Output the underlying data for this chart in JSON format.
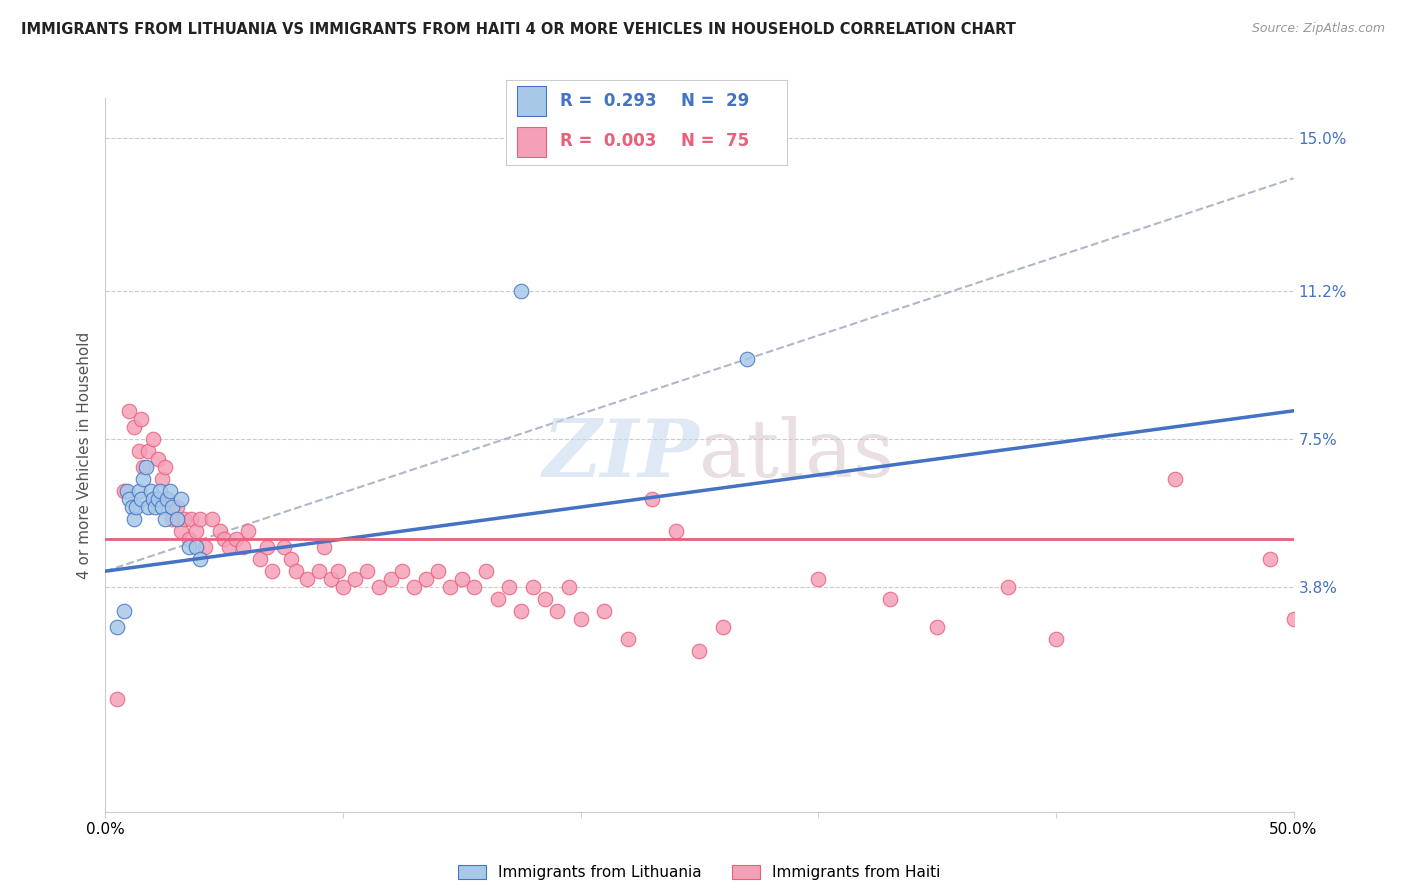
{
  "title": "IMMIGRANTS FROM LITHUANIA VS IMMIGRANTS FROM HAITI 4 OR MORE VEHICLES IN HOUSEHOLD CORRELATION CHART",
  "source": "Source: ZipAtlas.com",
  "ylabel": "4 or more Vehicles in Household",
  "x_min": 0.0,
  "x_max": 0.5,
  "y_min": -0.018,
  "y_max": 0.16,
  "y_tick_labels_right": [
    "15.0%",
    "11.2%",
    "7.5%",
    "3.8%"
  ],
  "y_tick_values_right": [
    0.15,
    0.112,
    0.075,
    0.038
  ],
  "legend_R_lithuania": "0.293",
  "legend_N_lithuania": "29",
  "legend_R_haiti": "0.003",
  "legend_N_haiti": "75",
  "color_lithuania": "#a8c8e8",
  "color_haiti": "#f4a0b8",
  "color_line_lithuania": "#4472c4",
  "color_line_haiti": "#e8607a",
  "color_line_dashed": "#b0b8c8",
  "lithuania_x": [
    0.005,
    0.008,
    0.009,
    0.01,
    0.011,
    0.012,
    0.013,
    0.014,
    0.015,
    0.016,
    0.017,
    0.018,
    0.019,
    0.02,
    0.021,
    0.022,
    0.023,
    0.024,
    0.025,
    0.026,
    0.027,
    0.028,
    0.03,
    0.032,
    0.035,
    0.038,
    0.04,
    0.175,
    0.27
  ],
  "lithuania_y": [
    0.028,
    0.032,
    0.062,
    0.06,
    0.058,
    0.055,
    0.058,
    0.062,
    0.06,
    0.065,
    0.068,
    0.058,
    0.062,
    0.06,
    0.058,
    0.06,
    0.062,
    0.058,
    0.055,
    0.06,
    0.062,
    0.058,
    0.055,
    0.06,
    0.048,
    0.048,
    0.045,
    0.112,
    0.095
  ],
  "haiti_x": [
    0.005,
    0.008,
    0.01,
    0.012,
    0.014,
    0.015,
    0.016,
    0.018,
    0.02,
    0.022,
    0.024,
    0.025,
    0.026,
    0.028,
    0.03,
    0.032,
    0.033,
    0.035,
    0.036,
    0.038,
    0.04,
    0.042,
    0.045,
    0.048,
    0.05,
    0.052,
    0.055,
    0.058,
    0.06,
    0.065,
    0.068,
    0.07,
    0.075,
    0.078,
    0.08,
    0.085,
    0.09,
    0.092,
    0.095,
    0.098,
    0.1,
    0.105,
    0.11,
    0.115,
    0.12,
    0.125,
    0.13,
    0.135,
    0.14,
    0.145,
    0.15,
    0.155,
    0.16,
    0.165,
    0.17,
    0.175,
    0.18,
    0.185,
    0.19,
    0.195,
    0.2,
    0.21,
    0.22,
    0.23,
    0.24,
    0.25,
    0.26,
    0.3,
    0.33,
    0.35,
    0.38,
    0.4,
    0.45,
    0.49,
    0.5
  ],
  "haiti_y": [
    0.01,
    0.062,
    0.082,
    0.078,
    0.072,
    0.08,
    0.068,
    0.072,
    0.075,
    0.07,
    0.065,
    0.068,
    0.06,
    0.055,
    0.058,
    0.052,
    0.055,
    0.05,
    0.055,
    0.052,
    0.055,
    0.048,
    0.055,
    0.052,
    0.05,
    0.048,
    0.05,
    0.048,
    0.052,
    0.045,
    0.048,
    0.042,
    0.048,
    0.045,
    0.042,
    0.04,
    0.042,
    0.048,
    0.04,
    0.042,
    0.038,
    0.04,
    0.042,
    0.038,
    0.04,
    0.042,
    0.038,
    0.04,
    0.042,
    0.038,
    0.04,
    0.038,
    0.042,
    0.035,
    0.038,
    0.032,
    0.038,
    0.035,
    0.032,
    0.038,
    0.03,
    0.032,
    0.025,
    0.06,
    0.052,
    0.022,
    0.028,
    0.04,
    0.035,
    0.028,
    0.038,
    0.025,
    0.065,
    0.045,
    0.03
  ],
  "lith_line_x0": 0.0,
  "lith_line_x1": 0.5,
  "lith_line_y0": 0.042,
  "lith_line_y1": 0.082,
  "haiti_line_x0": 0.0,
  "haiti_line_x1": 0.5,
  "haiti_line_y0": 0.05,
  "haiti_line_y1": 0.05,
  "dashed_line_x0": 0.0,
  "dashed_line_x1": 0.5,
  "dashed_line_y0": 0.042,
  "dashed_line_y1": 0.14
}
